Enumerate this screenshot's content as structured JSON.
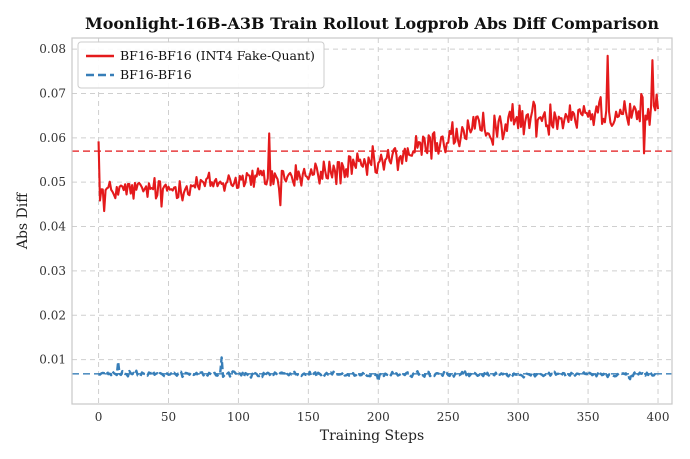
{
  "chart_data": {
    "type": "line",
    "title": "Moonlight-16B-A3B Train Rollout Logprob Abs Diff Comparison",
    "xlabel": "Training Steps",
    "ylabel": "Abs Diff",
    "xlim": [
      -19,
      410
    ],
    "ylim": [
      0.0,
      0.0825
    ],
    "xticks": [
      0,
      50,
      100,
      150,
      200,
      250,
      300,
      350,
      400
    ],
    "yticks": [
      0.01,
      0.02,
      0.03,
      0.04,
      0.05,
      0.06,
      0.07,
      0.08
    ],
    "grid": true,
    "legend_position": "top-left",
    "series": [
      {
        "name": "BF16-BF16 (INT4 Fake-Quant)",
        "color": "#e41a1c",
        "style": "solid",
        "x_step": 1,
        "x_start": 0,
        "trend": [
          [
            0,
            0.048
          ],
          [
            50,
            0.0485
          ],
          [
            100,
            0.0505
          ],
          [
            150,
            0.0515
          ],
          [
            200,
            0.054
          ],
          [
            250,
            0.06
          ],
          [
            300,
            0.064
          ],
          [
            350,
            0.066
          ],
          [
            400,
            0.066
          ]
        ],
        "noise": 0.0035,
        "spikes": [
          [
            0,
            0.0592
          ],
          [
            4,
            0.0435
          ],
          [
            45,
            0.0445
          ],
          [
            122,
            0.061
          ],
          [
            130,
            0.0448
          ],
          [
            364,
            0.0785
          ],
          [
            390,
            0.0565
          ],
          [
            396,
            0.0775
          ],
          [
            398,
            0.0662
          ]
        ],
        "mean_line": 0.057
      },
      {
        "name": "BF16-BF16",
        "color": "#377eb8",
        "style": "dashed",
        "x_step": 1,
        "x_start": 0,
        "trend": [
          [
            0,
            0.0068
          ],
          [
            400,
            0.0066
          ]
        ],
        "noise": 0.0009,
        "spikes": [
          [
            88,
            0.0105
          ],
          [
            14,
            0.0095
          ],
          [
            200,
            0.0052
          ],
          [
            380,
            0.0056
          ]
        ],
        "mean_line": 0.0068
      }
    ]
  }
}
